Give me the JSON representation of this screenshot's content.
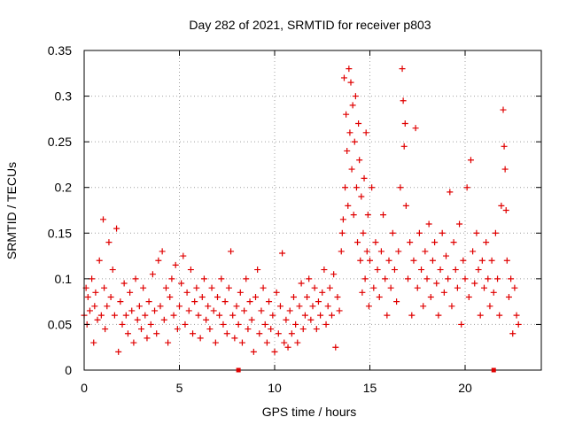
{
  "chart_data": {
    "type": "scatter",
    "title": "Day 282 of 2021, SRMTID for receiver p803",
    "xlabel": "GPS time / hours",
    "ylabel": "SRMTID / TECUs",
    "xlim": [
      0,
      24
    ],
    "ylim": [
      0,
      0.35
    ],
    "x_ticks": [
      0,
      5,
      10,
      15,
      20
    ],
    "x_tick_labels": [
      "0",
      "5",
      "10",
      "15",
      "20"
    ],
    "y_ticks": [
      0,
      0.05,
      0.1,
      0.15,
      0.2,
      0.25,
      0.3,
      0.35
    ],
    "y_tick_labels": [
      "0",
      "0.05",
      "0.1",
      "0.15",
      "0.2",
      "0.25",
      "0.3",
      "0.35"
    ],
    "grid": true,
    "marker": "+",
    "series_color": "#e00000",
    "x_axis_markers": [
      8.1,
      21.5
    ],
    "series": [
      {
        "name": "SRMTID",
        "points": [
          [
            0.0,
            0.06
          ],
          [
            0.1,
            0.09
          ],
          [
            0.15,
            0.05
          ],
          [
            0.2,
            0.08
          ],
          [
            0.3,
            0.065
          ],
          [
            0.4,
            0.1
          ],
          [
            0.5,
            0.03
          ],
          [
            0.55,
            0.07
          ],
          [
            0.6,
            0.085
          ],
          [
            0.7,
            0.055
          ],
          [
            0.8,
            0.12
          ],
          [
            0.9,
            0.06
          ],
          [
            1.0,
            0.165
          ],
          [
            1.05,
            0.09
          ],
          [
            1.1,
            0.045
          ],
          [
            1.2,
            0.07
          ],
          [
            1.3,
            0.14
          ],
          [
            1.4,
            0.08
          ],
          [
            1.5,
            0.11
          ],
          [
            1.6,
            0.06
          ],
          [
            1.7,
            0.155
          ],
          [
            1.8,
            0.02
          ],
          [
            1.9,
            0.075
          ],
          [
            2.0,
            0.05
          ],
          [
            2.1,
            0.095
          ],
          [
            2.2,
            0.06
          ],
          [
            2.3,
            0.04
          ],
          [
            2.4,
            0.085
          ],
          [
            2.5,
            0.065
          ],
          [
            2.6,
            0.03
          ],
          [
            2.7,
            0.1
          ],
          [
            2.8,
            0.055
          ],
          [
            2.9,
            0.07
          ],
          [
            3.0,
            0.045
          ],
          [
            3.1,
            0.09
          ],
          [
            3.2,
            0.06
          ],
          [
            3.3,
            0.035
          ],
          [
            3.4,
            0.075
          ],
          [
            3.5,
            0.05
          ],
          [
            3.6,
            0.105
          ],
          [
            3.7,
            0.065
          ],
          [
            3.8,
            0.04
          ],
          [
            3.9,
            0.12
          ],
          [
            4.0,
            0.07
          ],
          [
            4.1,
            0.13
          ],
          [
            4.2,
            0.055
          ],
          [
            4.3,
            0.09
          ],
          [
            4.4,
            0.03
          ],
          [
            4.5,
            0.08
          ],
          [
            4.6,
            0.1
          ],
          [
            4.7,
            0.06
          ],
          [
            4.8,
            0.115
          ],
          [
            4.9,
            0.045
          ],
          [
            5.0,
            0.07
          ],
          [
            5.1,
            0.095
          ],
          [
            5.2,
            0.125
          ],
          [
            5.3,
            0.05
          ],
          [
            5.4,
            0.085
          ],
          [
            5.5,
            0.065
          ],
          [
            5.6,
            0.11
          ],
          [
            5.7,
            0.04
          ],
          [
            5.8,
            0.075
          ],
          [
            5.9,
            0.09
          ],
          [
            6.0,
            0.06
          ],
          [
            6.1,
            0.035
          ],
          [
            6.2,
            0.08
          ],
          [
            6.3,
            0.1
          ],
          [
            6.4,
            0.055
          ],
          [
            6.5,
            0.07
          ],
          [
            6.6,
            0.045
          ],
          [
            6.7,
            0.09
          ],
          [
            6.8,
            0.065
          ],
          [
            6.9,
            0.03
          ],
          [
            7.0,
            0.08
          ],
          [
            7.1,
            0.06
          ],
          [
            7.2,
            0.1
          ],
          [
            7.3,
            0.05
          ],
          [
            7.4,
            0.075
          ],
          [
            7.5,
            0.04
          ],
          [
            7.6,
            0.09
          ],
          [
            7.7,
            0.13
          ],
          [
            7.8,
            0.06
          ],
          [
            7.9,
            0.035
          ],
          [
            8.0,
            0.07
          ],
          [
            8.1,
            0.05
          ],
          [
            8.2,
            0.085
          ],
          [
            8.3,
            0.03
          ],
          [
            8.4,
            0.065
          ],
          [
            8.5,
            0.1
          ],
          [
            8.6,
            0.045
          ],
          [
            8.7,
            0.075
          ],
          [
            8.8,
            0.055
          ],
          [
            8.9,
            0.02
          ],
          [
            9.0,
            0.08
          ],
          [
            9.1,
            0.11
          ],
          [
            9.2,
            0.04
          ],
          [
            9.3,
            0.065
          ],
          [
            9.4,
            0.09
          ],
          [
            9.5,
            0.05
          ],
          [
            9.6,
            0.03
          ],
          [
            9.7,
            0.075
          ],
          [
            9.8,
            0.045
          ],
          [
            9.9,
            0.06
          ],
          [
            10.0,
            0.02
          ],
          [
            10.1,
            0.085
          ],
          [
            10.2,
            0.04
          ],
          [
            10.3,
            0.07
          ],
          [
            10.4,
            0.128
          ],
          [
            10.5,
            0.03
          ],
          [
            10.6,
            0.055
          ],
          [
            10.7,
            0.025
          ],
          [
            10.8,
            0.065
          ],
          [
            10.9,
            0.04
          ],
          [
            11.0,
            0.08
          ],
          [
            11.1,
            0.05
          ],
          [
            11.2,
            0.03
          ],
          [
            11.3,
            0.07
          ],
          [
            11.4,
            0.095
          ],
          [
            11.5,
            0.045
          ],
          [
            11.6,
            0.06
          ],
          [
            11.7,
            0.08
          ],
          [
            11.8,
            0.1
          ],
          [
            11.9,
            0.055
          ],
          [
            12.0,
            0.07
          ],
          [
            12.1,
            0.09
          ],
          [
            12.2,
            0.045
          ],
          [
            12.3,
            0.075
          ],
          [
            12.4,
            0.06
          ],
          [
            12.5,
            0.085
          ],
          [
            12.6,
            0.11
          ],
          [
            12.7,
            0.05
          ],
          [
            12.8,
            0.07
          ],
          [
            12.9,
            0.09
          ],
          [
            13.0,
            0.06
          ],
          [
            13.1,
            0.105
          ],
          [
            13.2,
            0.025
          ],
          [
            13.3,
            0.08
          ],
          [
            13.4,
            0.065
          ],
          [
            13.5,
            0.13
          ],
          [
            13.55,
            0.15
          ],
          [
            13.6,
            0.165
          ],
          [
            13.65,
            0.32
          ],
          [
            13.7,
            0.2
          ],
          [
            13.75,
            0.28
          ],
          [
            13.8,
            0.24
          ],
          [
            13.85,
            0.18
          ],
          [
            13.9,
            0.33
          ],
          [
            13.95,
            0.26
          ],
          [
            14.0,
            0.315
          ],
          [
            14.05,
            0.22
          ],
          [
            14.1,
            0.29
          ],
          [
            14.15,
            0.17
          ],
          [
            14.2,
            0.25
          ],
          [
            14.25,
            0.3
          ],
          [
            14.3,
            0.2
          ],
          [
            14.35,
            0.14
          ],
          [
            14.4,
            0.27
          ],
          [
            14.45,
            0.23
          ],
          [
            14.5,
            0.12
          ],
          [
            14.55,
            0.19
          ],
          [
            14.6,
            0.085
          ],
          [
            14.65,
            0.15
          ],
          [
            14.7,
            0.21
          ],
          [
            14.75,
            0.1
          ],
          [
            14.8,
            0.26
          ],
          [
            14.85,
            0.13
          ],
          [
            14.9,
            0.17
          ],
          [
            14.95,
            0.07
          ],
          [
            15.0,
            0.12
          ],
          [
            15.1,
            0.2
          ],
          [
            15.2,
            0.09
          ],
          [
            15.3,
            0.14
          ],
          [
            15.4,
            0.11
          ],
          [
            15.5,
            0.08
          ],
          [
            15.6,
            0.13
          ],
          [
            15.7,
            0.17
          ],
          [
            15.8,
            0.1
          ],
          [
            15.9,
            0.06
          ],
          [
            16.0,
            0.12
          ],
          [
            16.1,
            0.09
          ],
          [
            16.2,
            0.15
          ],
          [
            16.3,
            0.11
          ],
          [
            16.4,
            0.075
          ],
          [
            16.5,
            0.13
          ],
          [
            16.6,
            0.2
          ],
          [
            16.7,
            0.33
          ],
          [
            16.75,
            0.295
          ],
          [
            16.8,
            0.245
          ],
          [
            16.85,
            0.27
          ],
          [
            16.9,
            0.18
          ],
          [
            17.0,
            0.1
          ],
          [
            17.1,
            0.14
          ],
          [
            17.2,
            0.06
          ],
          [
            17.3,
            0.12
          ],
          [
            17.4,
            0.265
          ],
          [
            17.5,
            0.09
          ],
          [
            17.6,
            0.15
          ],
          [
            17.7,
            0.11
          ],
          [
            17.8,
            0.07
          ],
          [
            17.9,
            0.13
          ],
          [
            18.0,
            0.1
          ],
          [
            18.1,
            0.16
          ],
          [
            18.2,
            0.08
          ],
          [
            18.3,
            0.12
          ],
          [
            18.4,
            0.14
          ],
          [
            18.5,
            0.095
          ],
          [
            18.6,
            0.06
          ],
          [
            18.7,
            0.11
          ],
          [
            18.8,
            0.15
          ],
          [
            18.9,
            0.085
          ],
          [
            19.0,
            0.125
          ],
          [
            19.1,
            0.1
          ],
          [
            19.2,
            0.195
          ],
          [
            19.3,
            0.07
          ],
          [
            19.4,
            0.14
          ],
          [
            19.5,
            0.11
          ],
          [
            19.6,
            0.09
          ],
          [
            19.7,
            0.16
          ],
          [
            19.8,
            0.05
          ],
          [
            19.9,
            0.12
          ],
          [
            20.0,
            0.1
          ],
          [
            20.1,
            0.2
          ],
          [
            20.2,
            0.08
          ],
          [
            20.3,
            0.23
          ],
          [
            20.4,
            0.13
          ],
          [
            20.5,
            0.095
          ],
          [
            20.6,
            0.15
          ],
          [
            20.7,
            0.11
          ],
          [
            20.8,
            0.06
          ],
          [
            20.9,
            0.12
          ],
          [
            21.0,
            0.09
          ],
          [
            21.1,
            0.14
          ],
          [
            21.2,
            0.1
          ],
          [
            21.3,
            0.07
          ],
          [
            21.4,
            0.12
          ],
          [
            21.5,
            0.085
          ],
          [
            21.6,
            0.15
          ],
          [
            21.7,
            0.1
          ],
          [
            21.8,
            0.06
          ],
          [
            21.9,
            0.18
          ],
          [
            22.0,
            0.285
          ],
          [
            22.05,
            0.245
          ],
          [
            22.1,
            0.22
          ],
          [
            22.15,
            0.175
          ],
          [
            22.2,
            0.12
          ],
          [
            22.3,
            0.08
          ],
          [
            22.4,
            0.1
          ],
          [
            22.5,
            0.04
          ],
          [
            22.6,
            0.09
          ],
          [
            22.7,
            0.06
          ],
          [
            22.8,
            0.05
          ]
        ]
      }
    ]
  }
}
